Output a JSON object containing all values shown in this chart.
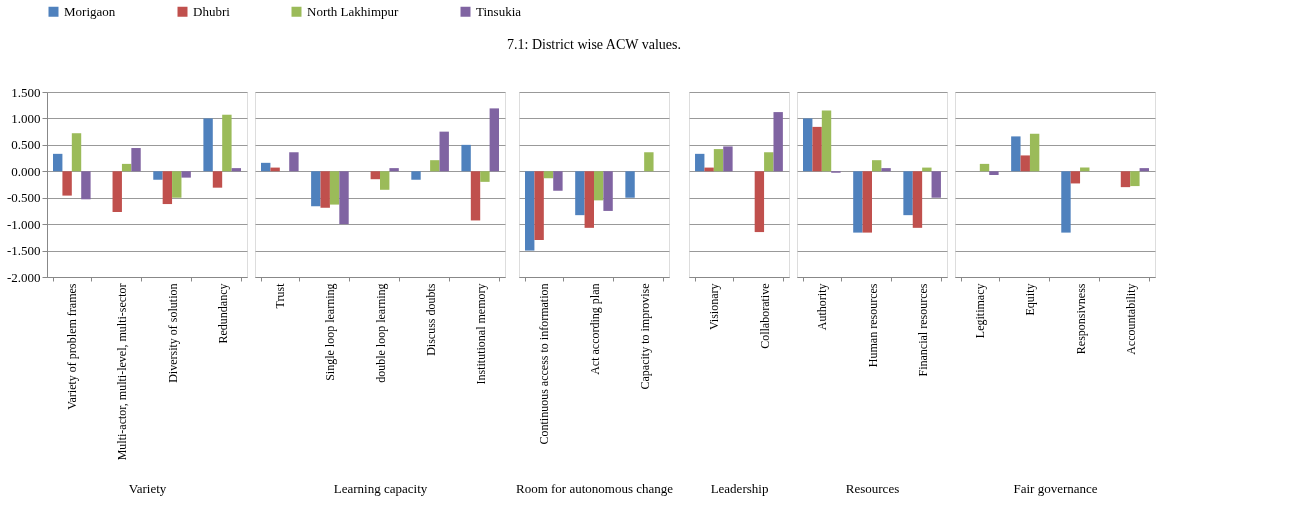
{
  "chart_data": [
    {
      "type": "bar",
      "xlabel": "Variety",
      "legend": "top",
      "grid": "y",
      "categories": [
        "Variety of problem frames",
        "Multi-actor, multi-level, multi-sector",
        "Diversity of solution",
        "Redundancy"
      ],
      "series": [
        {
          "name": "Morigaon",
          "color": "#4f81bd",
          "values": [
            0.33,
            0,
            -0.16,
            1.0
          ]
        },
        {
          "name": "Dhubri",
          "color": "#c0504d",
          "values": [
            -0.46,
            -0.77,
            -0.62,
            -0.31
          ]
        },
        {
          "name": "North Lakhimpur",
          "color": "#9bbb59",
          "values": [
            0.72,
            0.14,
            -0.5,
            1.07
          ]
        },
        {
          "name": "Tinsukia",
          "color": "#8064a2",
          "values": [
            -0.53,
            0.44,
            -0.12,
            0.06
          ]
        }
      ],
      "ylim": [
        -2.0,
        1.5
      ],
      "yticks": [
        {
          "value": -2.0,
          "label": "-2.000"
        },
        {
          "value": -1.5,
          "label": "-1.500"
        },
        {
          "value": -1.0,
          "label": "-1.000"
        },
        {
          "value": -0.5,
          "label": "-0.500"
        },
        {
          "value": 0,
          "label": "0.000"
        },
        {
          "value": 0.5,
          "label": "0.500"
        },
        {
          "value": 1.0,
          "label": "1.000"
        },
        {
          "value": 1.5,
          "label": "1.500"
        }
      ]
    },
    {
      "type": "bar",
      "xlabel": "Learning capacity",
      "grid": "y",
      "tick_labels": "x",
      "ylim": [
        -2.0,
        1.5
      ],
      "categories": [
        "Trust",
        "Single loop learning",
        "double loop learning",
        "Discuss doubts",
        "Institutional memory"
      ],
      "series": [
        {
          "color": "#4f81bd",
          "values": [
            0.16,
            -0.66,
            0,
            -0.16,
            0.5
          ]
        },
        {
          "color": "#c0504d",
          "values": [
            0.07,
            -0.69,
            -0.15,
            0,
            -0.93
          ]
        },
        {
          "color": "#9bbb59",
          "values": [
            0,
            -0.63,
            -0.35,
            0.21,
            -0.2
          ]
        },
        {
          "color": "#8064a2",
          "values": [
            0.36,
            -1.0,
            0.06,
            0.75,
            1.19
          ]
        }
      ]
    },
    {
      "type": "bar",
      "title": "7.1: District wise ACW values.",
      "xlabel": "Room for autonomous change",
      "grid": "y",
      "tick_labels": "x",
      "ylim": [
        -2.0,
        1.5
      ],
      "categories": [
        "Continuous access to information",
        "Act according plan",
        "Capacity to improvise"
      ],
      "series": [
        {
          "color": "#4f81bd",
          "values": [
            -1.5,
            -0.83,
            -0.5
          ]
        },
        {
          "color": "#c0504d",
          "values": [
            -1.3,
            -1.07,
            0
          ]
        },
        {
          "color": "#9bbb59",
          "values": [
            -0.13,
            -0.55,
            0.36
          ]
        },
        {
          "color": "#8064a2",
          "values": [
            -0.37,
            -0.75,
            0
          ]
        }
      ]
    },
    {
      "type": "bar",
      "xlabel": "Leadership",
      "grid": "y",
      "tick_labels": "x",
      "ylim": [
        -2.0,
        1.5
      ],
      "categories": [
        "Visionary",
        "Collaborative"
      ],
      "series": [
        {
          "color": "#4f81bd",
          "values": [
            0.33,
            0
          ]
        },
        {
          "color": "#c0504d",
          "values": [
            0.07,
            -1.15
          ]
        },
        {
          "color": "#9bbb59",
          "values": [
            0.42,
            0.36
          ]
        },
        {
          "color": "#8064a2",
          "values": [
            0.47,
            1.12
          ]
        }
      ]
    },
    {
      "type": "bar",
      "xlabel": "Resources",
      "grid": "y",
      "tick_labels": "x",
      "ylim": [
        -2.0,
        1.5
      ],
      "categories": [
        "Authority",
        "Human resources",
        "Financial resources"
      ],
      "series": [
        {
          "color": "#4f81bd",
          "values": [
            1.0,
            -1.16,
            -0.83
          ]
        },
        {
          "color": "#c0504d",
          "values": [
            0.84,
            -1.16,
            -1.07
          ]
        },
        {
          "color": "#9bbb59",
          "values": [
            1.15,
            0.21,
            0.07
          ]
        },
        {
          "color": "#8064a2",
          "values": [
            -0.03,
            0.06,
            -0.5
          ]
        }
      ]
    },
    {
      "type": "bar",
      "xlabel": "Fair governance",
      "grid": "y",
      "tick_labels": "x",
      "ylim": [
        -2.0,
        1.5
      ],
      "categories": [
        "Legitimacy",
        "Equity",
        "Responsivness",
        "Accountability"
      ],
      "series": [
        {
          "color": "#4f81bd",
          "values": [
            0,
            0.66,
            -1.16,
            0
          ]
        },
        {
          "color": "#c0504d",
          "values": [
            0,
            0.3,
            -0.23,
            -0.3
          ]
        },
        {
          "color": "#9bbb59",
          "values": [
            0.14,
            0.71,
            0.07,
            -0.28
          ]
        },
        {
          "color": "#8064a2",
          "values": [
            -0.07,
            0,
            0,
            0.06
          ]
        }
      ]
    }
  ]
}
